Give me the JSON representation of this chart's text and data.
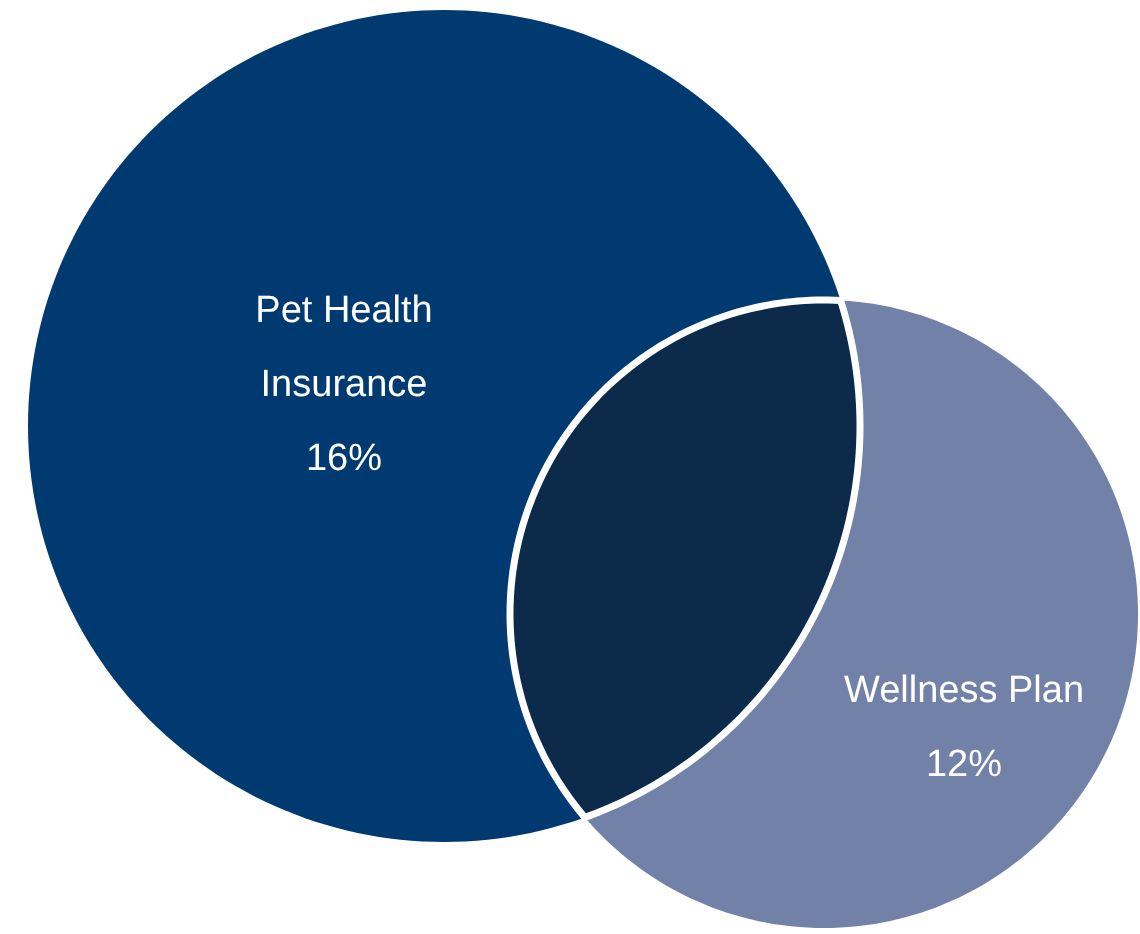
{
  "chart_data": {
    "type": "other",
    "categories": [
      "Pet Health Insurance",
      "Wellness Plan"
    ],
    "values": [
      16,
      12
    ],
    "value_labels": [
      "16%",
      "12%"
    ],
    "colors": [
      "#003a70",
      "#7281a8"
    ]
  }
}
